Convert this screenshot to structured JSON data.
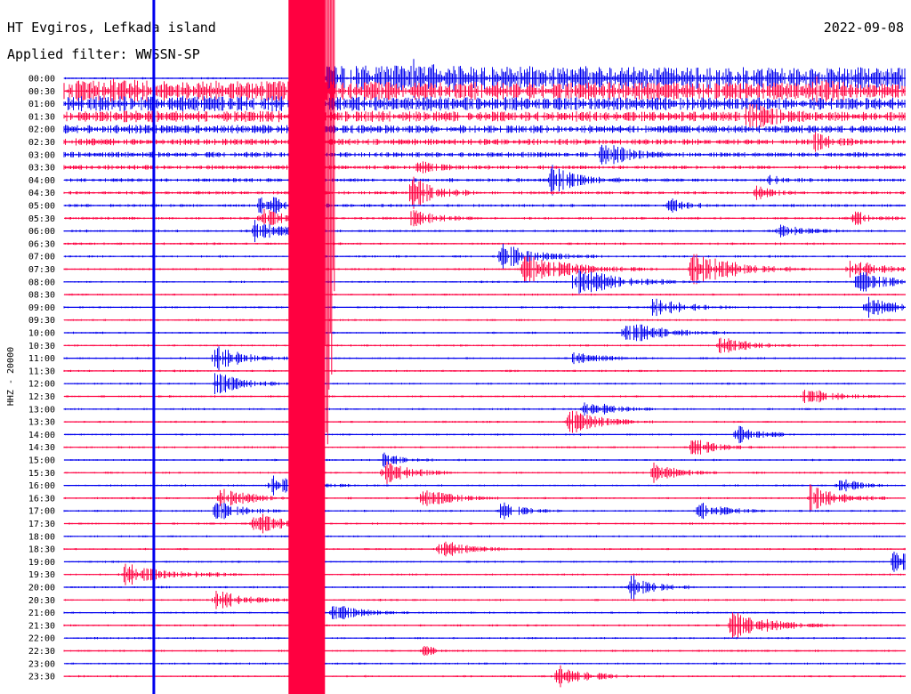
{
  "chart_data": {
    "type": "line",
    "title": "HT Evgiros, Lefkada island",
    "subtitle": "Applied filter: WWSSN-SP",
    "date": "2022-09-08",
    "ylabel": "HHZ - 20000",
    "xlabel": "",
    "x_range_minutes": [
      0,
      30
    ],
    "trace_interval_minutes": 30,
    "grid": false,
    "colors": {
      "odd": "#0000ee",
      "even": "#ff0040",
      "text": "#000000"
    },
    "rows": [
      "00:00",
      "00:30",
      "01:00",
      "01:30",
      "02:00",
      "02:30",
      "03:00",
      "03:30",
      "04:00",
      "04:30",
      "05:00",
      "05:30",
      "06:00",
      "06:30",
      "07:00",
      "07:30",
      "08:00",
      "08:30",
      "09:00",
      "09:30",
      "10:00",
      "10:30",
      "11:00",
      "11:30",
      "12:00",
      "12:30",
      "13:00",
      "13:30",
      "14:00",
      "14:30",
      "15:00",
      "15:30",
      "16:00",
      "16:30",
      "17:00",
      "17:30",
      "18:00",
      "18:30",
      "19:00",
      "19:30",
      "20:00",
      "20:30",
      "21:00",
      "21:30",
      "22:00",
      "22:30",
      "23:00",
      "23:30"
    ],
    "events": [
      {
        "row": 0,
        "minute": 12.4,
        "amplitude": 10,
        "duration_min": 0.4
      },
      {
        "row": 1,
        "minute": 1.6,
        "amplitude": 4,
        "duration_min": 0.6
      },
      {
        "row": 1,
        "minute": 26.8,
        "amplitude": 8,
        "duration_min": 0.6
      },
      {
        "row": 3,
        "minute": 24.4,
        "amplitude": 14,
        "duration_min": 0.8
      },
      {
        "row": 5,
        "minute": 26.6,
        "amplitude": 10,
        "duration_min": 0.8
      },
      {
        "row": 6,
        "minute": 19.2,
        "amplitude": 14,
        "duration_min": 0.8
      },
      {
        "row": 7,
        "minute": 12.6,
        "amplitude": 8,
        "duration_min": 0.6
      },
      {
        "row": 8,
        "minute": 17.4,
        "amplitude": 16,
        "duration_min": 0.8
      },
      {
        "row": 8,
        "minute": 25.2,
        "amplitude": 6,
        "duration_min": 0.5
      },
      {
        "row": 9,
        "minute": 12.4,
        "amplitude": 18,
        "duration_min": 0.8
      },
      {
        "row": 9,
        "minute": 24.6,
        "amplitude": 8,
        "duration_min": 0.6
      },
      {
        "row": 10,
        "minute": 7.0,
        "amplitude": 14,
        "duration_min": 0.9
      },
      {
        "row": 10,
        "minute": 21.6,
        "amplitude": 8,
        "duration_min": 0.6
      },
      {
        "row": 11,
        "minute": 7.0,
        "amplitude": 12,
        "duration_min": 0.8
      },
      {
        "row": 11,
        "minute": 12.4,
        "amplitude": 10,
        "duration_min": 0.8
      },
      {
        "row": 11,
        "minute": 28.2,
        "amplitude": 8,
        "duration_min": 0.6
      },
      {
        "row": 12,
        "minute": 6.8,
        "amplitude": 14,
        "duration_min": 0.8
      },
      {
        "row": 12,
        "minute": 25.4,
        "amplitude": 10,
        "duration_min": 0.8
      },
      {
        "row": 14,
        "minute": 15.6,
        "amplitude": 14,
        "duration_min": 1.2
      },
      {
        "row": 15,
        "minute": 16.4,
        "amplitude": 16,
        "duration_min": 1.6
      },
      {
        "row": 15,
        "minute": 22.4,
        "amplitude": 20,
        "duration_min": 1.4
      },
      {
        "row": 15,
        "minute": 28.0,
        "amplitude": 14,
        "duration_min": 1.0
      },
      {
        "row": 16,
        "minute": 18.2,
        "amplitude": 18,
        "duration_min": 1.4
      },
      {
        "row": 16,
        "minute": 28.2,
        "amplitude": 14,
        "duration_min": 1.0
      },
      {
        "row": 18,
        "minute": 21.0,
        "amplitude": 12,
        "duration_min": 1.0
      },
      {
        "row": 18,
        "minute": 28.6,
        "amplitude": 12,
        "duration_min": 1.0
      },
      {
        "row": 20,
        "minute": 20.0,
        "amplitude": 14,
        "duration_min": 1.2
      },
      {
        "row": 21,
        "minute": 23.4,
        "amplitude": 10,
        "duration_min": 1.0
      },
      {
        "row": 22,
        "minute": 5.4,
        "amplitude": 14,
        "duration_min": 1.0
      },
      {
        "row": 22,
        "minute": 18.2,
        "amplitude": 8,
        "duration_min": 0.8
      },
      {
        "row": 24,
        "minute": 5.4,
        "amplitude": 14,
        "duration_min": 1.0
      },
      {
        "row": 25,
        "minute": 26.4,
        "amplitude": 10,
        "duration_min": 0.9
      },
      {
        "row": 26,
        "minute": 18.6,
        "amplitude": 12,
        "duration_min": 0.8
      },
      {
        "row": 27,
        "minute": 18.0,
        "amplitude": 14,
        "duration_min": 1.0
      },
      {
        "row": 28,
        "minute": 24.0,
        "amplitude": 10,
        "duration_min": 0.8
      },
      {
        "row": 29,
        "minute": 22.4,
        "amplitude": 10,
        "duration_min": 0.8
      },
      {
        "row": 30,
        "minute": 11.4,
        "amplitude": 8,
        "duration_min": 0.6
      },
      {
        "row": 31,
        "minute": 11.4,
        "amplitude": 14,
        "duration_min": 0.8
      },
      {
        "row": 31,
        "minute": 21.0,
        "amplitude": 12,
        "duration_min": 0.8
      },
      {
        "row": 32,
        "minute": 7.4,
        "amplitude": 12,
        "duration_min": 1.0
      },
      {
        "row": 32,
        "minute": 27.6,
        "amplitude": 10,
        "duration_min": 0.6
      },
      {
        "row": 33,
        "minute": 5.6,
        "amplitude": 14,
        "duration_min": 0.9
      },
      {
        "row": 33,
        "minute": 12.8,
        "amplitude": 12,
        "duration_min": 0.9
      },
      {
        "row": 33,
        "minute": 26.6,
        "amplitude": 16,
        "duration_min": 0.9
      },
      {
        "row": 34,
        "minute": 5.4,
        "amplitude": 12,
        "duration_min": 0.8
      },
      {
        "row": 34,
        "minute": 15.6,
        "amplitude": 10,
        "duration_min": 0.7
      },
      {
        "row": 34,
        "minute": 22.6,
        "amplitude": 12,
        "duration_min": 0.8
      },
      {
        "row": 35,
        "minute": 6.8,
        "amplitude": 14,
        "duration_min": 0.8
      },
      {
        "row": 37,
        "minute": 13.4,
        "amplitude": 12,
        "duration_min": 0.8
      },
      {
        "row": 38,
        "minute": 29.6,
        "amplitude": 16,
        "duration_min": 0.6
      },
      {
        "row": 39,
        "minute": 2.2,
        "amplitude": 14,
        "duration_min": 1.4
      },
      {
        "row": 40,
        "minute": 20.2,
        "amplitude": 14,
        "duration_min": 0.8
      },
      {
        "row": 41,
        "minute": 5.4,
        "amplitude": 12,
        "duration_min": 0.9
      },
      {
        "row": 42,
        "minute": 9.6,
        "amplitude": 10,
        "duration_min": 0.9
      },
      {
        "row": 43,
        "minute": 23.8,
        "amplitude": 18,
        "duration_min": 1.2
      },
      {
        "row": 45,
        "minute": 12.8,
        "amplitude": 6,
        "duration_min": 0.5
      },
      {
        "row": 47,
        "minute": 17.6,
        "amplitude": 14,
        "duration_min": 0.9
      }
    ],
    "large_quake": {
      "row": 0,
      "minute": 8.0,
      "duration_min": 1.3,
      "decay_rows": 15
    },
    "long_spike": {
      "row": 0,
      "minute": 3.2
    }
  }
}
